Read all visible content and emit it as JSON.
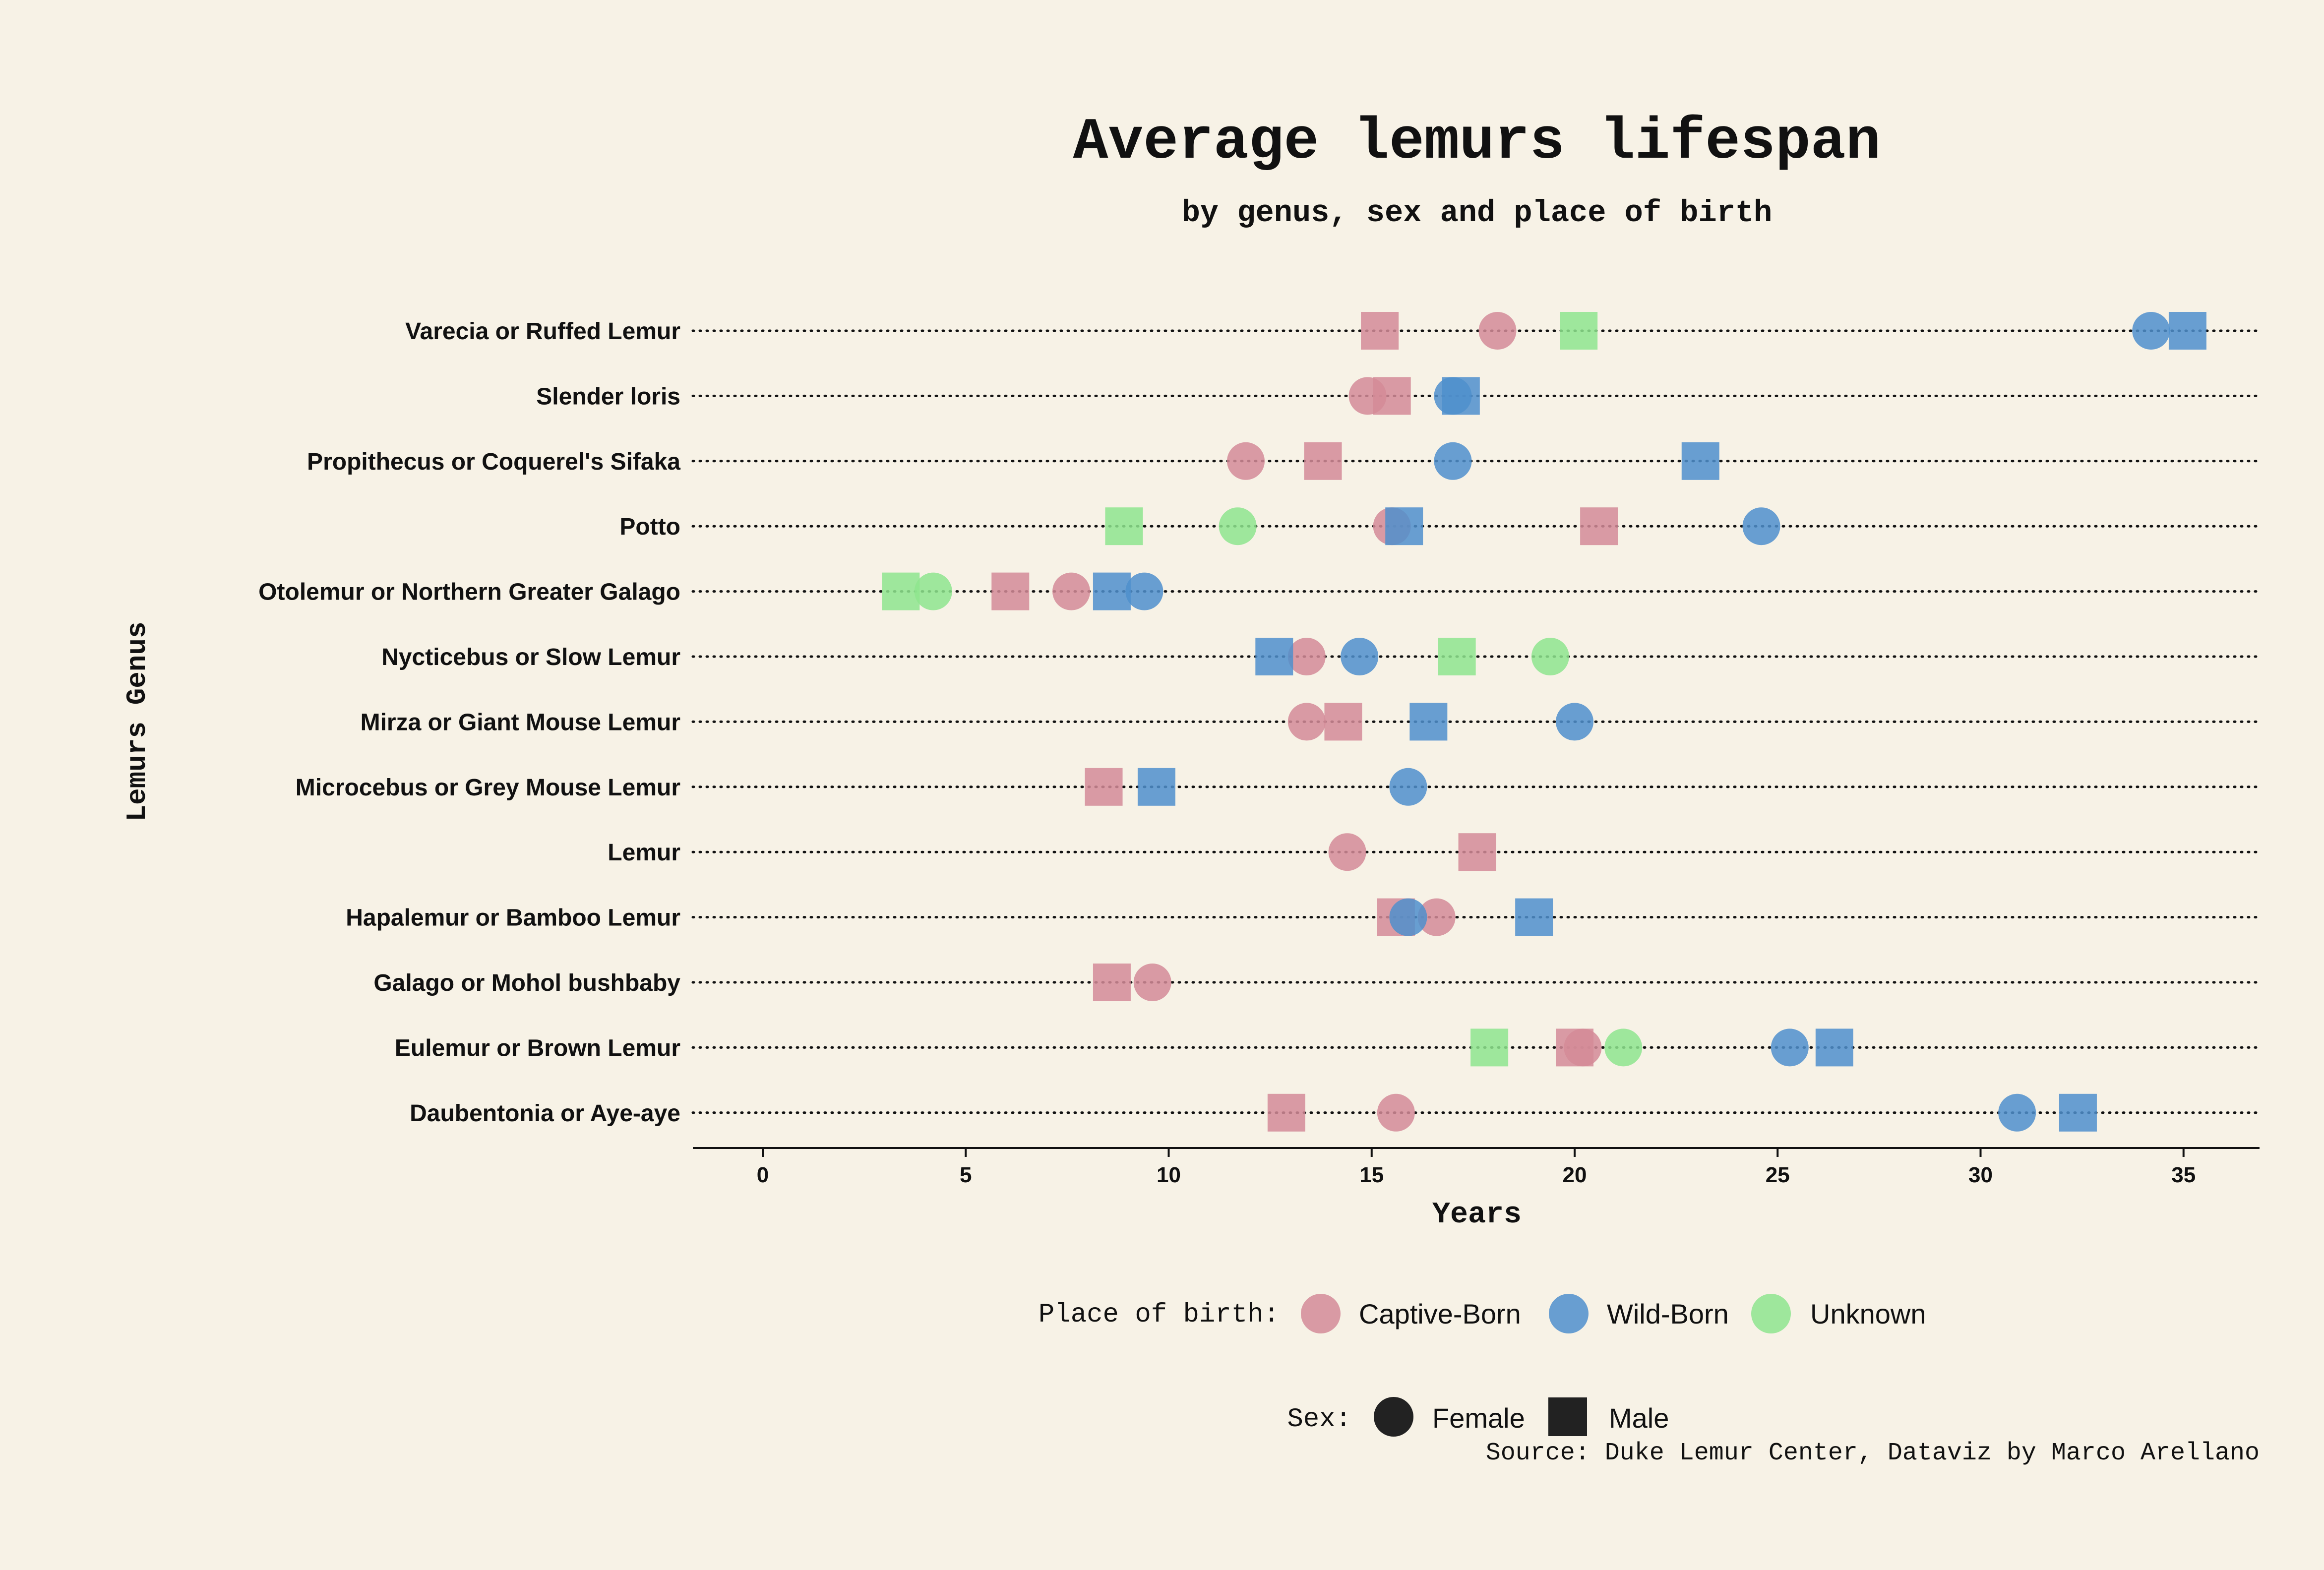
{
  "colors": {
    "background": "#f7f2e6",
    "captive": "#d48b98",
    "wild": "#4f8fcc",
    "unknown": "#8ee58e",
    "text": "#111111",
    "legend_sex_marker": "#222222"
  },
  "chart_data": {
    "type": "scatter",
    "title": "Average lemurs lifespan",
    "subtitle": "by genus, sex and place of birth",
    "xlabel": "Years",
    "ylabel": "Lemurs Genus",
    "xlim": [
      -1.7,
      36.8
    ],
    "xticks": [
      0,
      5,
      10,
      15,
      20,
      25,
      30,
      35
    ],
    "grid": "dotted horizontal lines per genus",
    "categories": [
      "Varecia or Ruffed Lemur",
      "Slender loris",
      "Propithecus or Coquerel's Sifaka",
      "Potto",
      "Otolemur or Northern Greater Galago",
      "Nycticebus or Slow Lemur",
      "Mirza or Giant Mouse Lemur",
      "Microcebus or Grey Mouse Lemur",
      "Lemur",
      "Hapalemur or Bamboo Lemur",
      "Galago or Mohol bushbaby",
      "Eulemur or Brown Lemur",
      "Daubentonia or Aye-aye"
    ],
    "series": [
      {
        "name": "Captive-Born",
        "color_key": "captive",
        "points": [
          {
            "genus": "Varecia or Ruffed Lemur",
            "sex": "Male",
            "years": 15.2
          },
          {
            "genus": "Varecia or Ruffed Lemur",
            "sex": "Female",
            "years": 18.1
          },
          {
            "genus": "Slender loris",
            "sex": "Female",
            "years": 14.9
          },
          {
            "genus": "Slender loris",
            "sex": "Male",
            "years": 15.5
          },
          {
            "genus": "Propithecus or Coquerel's Sifaka",
            "sex": "Female",
            "years": 11.9
          },
          {
            "genus": "Propithecus or Coquerel's Sifaka",
            "sex": "Male",
            "years": 13.8
          },
          {
            "genus": "Potto",
            "sex": "Female",
            "years": 15.5
          },
          {
            "genus": "Potto",
            "sex": "Male",
            "years": 20.6
          },
          {
            "genus": "Otolemur or Northern Greater Galago",
            "sex": "Male",
            "years": 6.1
          },
          {
            "genus": "Otolemur or Northern Greater Galago",
            "sex": "Female",
            "years": 7.6
          },
          {
            "genus": "Nycticebus or Slow Lemur",
            "sex": "Female",
            "years": 13.4
          },
          {
            "genus": "Mirza or Giant Mouse Lemur",
            "sex": "Female",
            "years": 13.4
          },
          {
            "genus": "Mirza or Giant Mouse Lemur",
            "sex": "Male",
            "years": 14.3
          },
          {
            "genus": "Microcebus or Grey Mouse Lemur",
            "sex": "Male",
            "years": 8.4
          },
          {
            "genus": "Lemur",
            "sex": "Female",
            "years": 14.4
          },
          {
            "genus": "Lemur",
            "sex": "Male",
            "years": 17.6
          },
          {
            "genus": "Hapalemur or Bamboo Lemur",
            "sex": "Male",
            "years": 15.6
          },
          {
            "genus": "Hapalemur or Bamboo Lemur",
            "sex": "Female",
            "years": 16.6
          },
          {
            "genus": "Galago or Mohol bushbaby",
            "sex": "Male",
            "years": 8.6
          },
          {
            "genus": "Galago or Mohol bushbaby",
            "sex": "Female",
            "years": 9.6
          },
          {
            "genus": "Eulemur or Brown Lemur",
            "sex": "Male",
            "years": 20.0
          },
          {
            "genus": "Eulemur or Brown Lemur",
            "sex": "Female",
            "years": 20.2
          },
          {
            "genus": "Daubentonia or Aye-aye",
            "sex": "Male",
            "years": 12.9
          },
          {
            "genus": "Daubentonia or Aye-aye",
            "sex": "Female",
            "years": 15.6
          }
        ]
      },
      {
        "name": "Wild-Born",
        "color_key": "wild",
        "points": [
          {
            "genus": "Varecia or Ruffed Lemur",
            "sex": "Female",
            "years": 34.2
          },
          {
            "genus": "Varecia or Ruffed Lemur",
            "sex": "Male",
            "years": 35.1
          },
          {
            "genus": "Slender loris",
            "sex": "Male",
            "years": 17.2
          },
          {
            "genus": "Slender loris",
            "sex": "Female",
            "years": 17.0
          },
          {
            "genus": "Propithecus or Coquerel's Sifaka",
            "sex": "Female",
            "years": 17.0
          },
          {
            "genus": "Propithecus or Coquerel's Sifaka",
            "sex": "Male",
            "years": 23.1
          },
          {
            "genus": "Potto",
            "sex": "Male",
            "years": 15.8
          },
          {
            "genus": "Potto",
            "sex": "Female",
            "years": 24.6
          },
          {
            "genus": "Otolemur or Northern Greater Galago",
            "sex": "Male",
            "years": 8.6
          },
          {
            "genus": "Otolemur or Northern Greater Galago",
            "sex": "Female",
            "years": 9.4
          },
          {
            "genus": "Nycticebus or Slow Lemur",
            "sex": "Male",
            "years": 12.6
          },
          {
            "genus": "Nycticebus or Slow Lemur",
            "sex": "Female",
            "years": 14.7
          },
          {
            "genus": "Mirza or Giant Mouse Lemur",
            "sex": "Male",
            "years": 16.4
          },
          {
            "genus": "Mirza or Giant Mouse Lemur",
            "sex": "Female",
            "years": 20.0
          },
          {
            "genus": "Microcebus or Grey Mouse Lemur",
            "sex": "Male",
            "years": 9.7
          },
          {
            "genus": "Microcebus or Grey Mouse Lemur",
            "sex": "Female",
            "years": 15.9
          },
          {
            "genus": "Hapalemur or Bamboo Lemur",
            "sex": "Female",
            "years": 15.9
          },
          {
            "genus": "Hapalemur or Bamboo Lemur",
            "sex": "Male",
            "years": 19.0
          },
          {
            "genus": "Eulemur or Brown Lemur",
            "sex": "Female",
            "years": 25.3
          },
          {
            "genus": "Eulemur or Brown Lemur",
            "sex": "Male",
            "years": 26.4
          },
          {
            "genus": "Daubentonia or Aye-aye",
            "sex": "Female",
            "years": 30.9
          },
          {
            "genus": "Daubentonia or Aye-aye",
            "sex": "Male",
            "years": 32.4
          }
        ]
      },
      {
        "name": "Unknown",
        "color_key": "unknown",
        "points": [
          {
            "genus": "Varecia or Ruffed Lemur",
            "sex": "Male",
            "years": 20.1
          },
          {
            "genus": "Potto",
            "sex": "Male",
            "years": 8.9
          },
          {
            "genus": "Potto",
            "sex": "Female",
            "years": 11.7
          },
          {
            "genus": "Otolemur or Northern Greater Galago",
            "sex": "Male",
            "years": 3.4
          },
          {
            "genus": "Otolemur or Northern Greater Galago",
            "sex": "Female",
            "years": 4.2
          },
          {
            "genus": "Nycticebus or Slow Lemur",
            "sex": "Male",
            "years": 17.1
          },
          {
            "genus": "Nycticebus or Slow Lemur",
            "sex": "Female",
            "years": 19.4
          },
          {
            "genus": "Eulemur or Brown Lemur",
            "sex": "Male",
            "years": 17.9
          },
          {
            "genus": "Eulemur or Brown Lemur",
            "sex": "Female",
            "years": 21.2
          }
        ]
      }
    ],
    "legend_placement": "bottom-center",
    "legend": {
      "place_title": "Place of birth:",
      "place_items": [
        {
          "label": "Captive-Born",
          "color_key": "captive"
        },
        {
          "label": "Wild-Born",
          "color_key": "wild"
        },
        {
          "label": "Unknown",
          "color_key": "unknown"
        }
      ],
      "sex_title": "Sex:",
      "sex_items": [
        {
          "label": "Female",
          "marker": "circle"
        },
        {
          "label": "Male",
          "marker": "square"
        }
      ]
    },
    "source": "Source: Duke Lemur Center, Dataviz by Marco Arellano"
  }
}
